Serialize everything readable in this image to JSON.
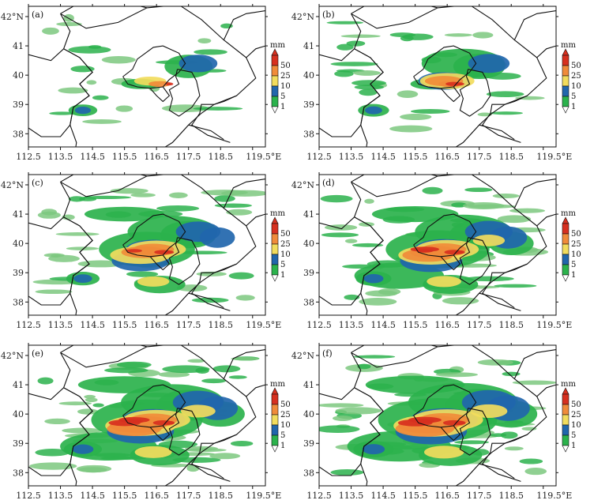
{
  "figure": {
    "unit_label": "mm",
    "x_ticks": [
      "112.5",
      "113.5",
      "114.5",
      "115.5",
      "116.5",
      "117.5",
      "118.5",
      "119.5°E"
    ],
    "y_ticks": [
      "42°N",
      "41",
      "40",
      "39",
      "38"
    ],
    "colorbar_levels": [
      "1",
      "5",
      "10",
      "25",
      "50"
    ],
    "colors": {
      "lvl1": "#2bb24c",
      "lvl5": "#2166ac",
      "lvl10": "#f2dc5d",
      "lvl25": "#f08b3a",
      "lvl50": "#d7301f",
      "green_light": "#7cc87f"
    }
  },
  "panels": [
    {
      "label": "(a)",
      "intensity": 1
    },
    {
      "label": "(b)",
      "intensity": 2
    },
    {
      "label": "(c)",
      "intensity": 3
    },
    {
      "label": "(d)",
      "intensity": 4
    },
    {
      "label": "(e)",
      "intensity": 5
    },
    {
      "label": "(f)",
      "intensity": 6
    }
  ]
}
